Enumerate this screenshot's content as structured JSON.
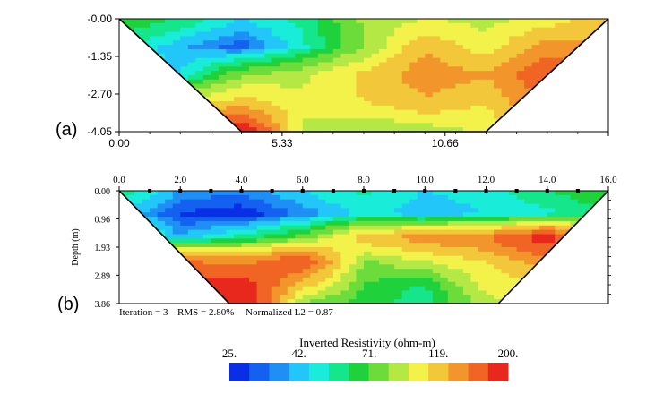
{
  "chart_data": [
    {
      "type": "heatmap",
      "panel_label": "(a)",
      "x_ticks": [
        0.0,
        5.33,
        10.66
      ],
      "x_tick_labels": [
        "0.00",
        "5.33",
        "10.66"
      ],
      "xlim": [
        0,
        16
      ],
      "y_ticks": [
        0.0,
        1.35,
        2.7,
        4.05
      ],
      "y_tick_labels": [
        "-0.00",
        "-1.35",
        "-2.70",
        "-4.05"
      ],
      "ylim": [
        0,
        4.05
      ],
      "grid_x": [
        0,
        2,
        4,
        6,
        8,
        10,
        12,
        14,
        16
      ],
      "grid_y": [
        0.0,
        1.0,
        2.0,
        3.0,
        4.05
      ],
      "values": [
        [
          71,
          60,
          45,
          55,
          85,
          95,
          90,
          100,
          120
        ],
        [
          55,
          40,
          30,
          50,
          80,
          125,
          100,
          140,
          130
        ],
        [
          50,
          45,
          80,
          90,
          115,
          140,
          130,
          170,
          120
        ],
        [
          80,
          95,
          120,
          100,
          110,
          125,
          110,
          155,
          110
        ],
        [
          180,
          170,
          200,
          90,
          80,
          85,
          100,
          130,
          100
        ]
      ],
      "trapezoid_bottom": [
        4.0,
        12.0
      ]
    },
    {
      "type": "heatmap",
      "panel_label": "(b)",
      "x_ticks": [
        0,
        2,
        4,
        6,
        8,
        10,
        12,
        14,
        16
      ],
      "x_tick_labels": [
        "0.0",
        "2.0",
        "4.0",
        "6.0",
        "8.0",
        "10.0",
        "12.0",
        "14.0",
        "16.0"
      ],
      "xlim": [
        0,
        16
      ],
      "electrodes": [
        1,
        2,
        3,
        4,
        5,
        6,
        7,
        8,
        9,
        10,
        11,
        12,
        13,
        14,
        15
      ],
      "y_ticks": [
        0.0,
        0.96,
        1.93,
        2.89,
        3.86
      ],
      "y_tick_labels": [
        "0.00",
        "0.96",
        "1.93",
        "2.89",
        "3.86"
      ],
      "ylim": [
        0,
        3.86
      ],
      "ylabel": "Depth (m)",
      "grid_x": [
        0,
        2,
        4,
        6,
        8,
        10,
        12,
        14,
        16
      ],
      "grid_y": [
        0.0,
        0.8,
        1.6,
        2.4,
        3.2,
        3.86
      ],
      "values": [
        [
          60,
          38,
          35,
          45,
          55,
          45,
          50,
          60,
          71
        ],
        [
          45,
          28,
          25,
          35,
          48,
          40,
          45,
          50,
          60
        ],
        [
          70,
          40,
          55,
          75,
          120,
          140,
          150,
          190,
          110
        ],
        [
          130,
          150,
          140,
          170,
          80,
          95,
          110,
          140,
          110
        ],
        [
          160,
          180,
          190,
          120,
          70,
          60,
          100,
          110,
          100
        ],
        [
          190,
          200,
          200,
          80,
          65,
          55,
          90,
          100,
          90
        ]
      ],
      "trapezoid_bottom": [
        3.6,
        12.4
      ],
      "footer": {
        "iteration": "Iteration = 3",
        "rms": "RMS = 2.80%",
        "l2": "Normalized L2 = 0.87"
      }
    }
  ],
  "colorbar": {
    "title": "Inverted Resistivity (ohm-m)",
    "colors": [
      "#0a2ee6",
      "#1460f0",
      "#1e8ff5",
      "#22c6f8",
      "#19ecd9",
      "#15e68c",
      "#1fd23c",
      "#6cdc3a",
      "#b4e845",
      "#f2f24a",
      "#f2c83a",
      "#f2962c",
      "#f06424",
      "#e8281c"
    ],
    "labels": [
      "25.",
      "42.",
      "71.",
      "119.",
      "200."
    ],
    "label_values": [
      25,
      42,
      71,
      119,
      200
    ]
  }
}
